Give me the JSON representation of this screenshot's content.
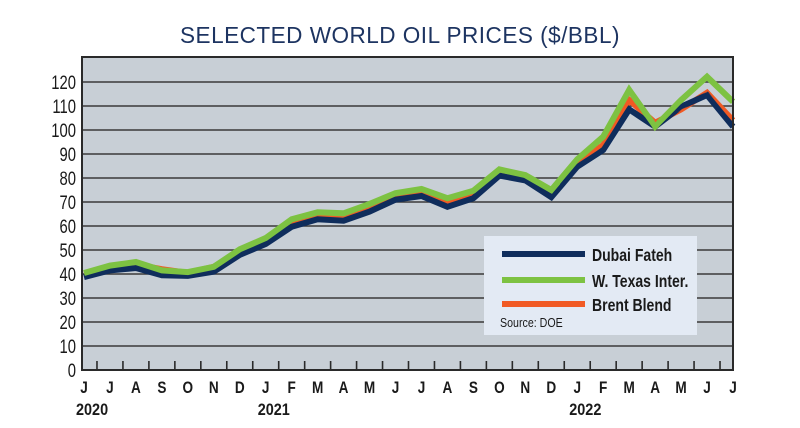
{
  "chart_data": {
    "type": "line",
    "title": "SELECTED WORLD OIL PRICES ($/BBL)",
    "xlabel": "",
    "ylabel": "",
    "ylim": [
      0,
      125
    ],
    "yticks": [
      0,
      10,
      20,
      30,
      40,
      50,
      60,
      70,
      80,
      90,
      100,
      110,
      120
    ],
    "grid": true,
    "x": [
      "J",
      "J",
      "A",
      "S",
      "O",
      "N",
      "D",
      "J",
      "F",
      "M",
      "A",
      "M",
      "J",
      "J",
      "A",
      "S",
      "O",
      "N",
      "D",
      "J",
      "F",
      "M",
      "A",
      "M",
      "J",
      "J"
    ],
    "year_labels": [
      {
        "label": "2020",
        "index": 0
      },
      {
        "label": "2021",
        "index": 7
      },
      {
        "label": "2022",
        "index": 19
      }
    ],
    "series": [
      {
        "name": "Brent Blend",
        "color": "#f15a24",
        "values": [
          40.3,
          42.5,
          44,
          42,
          40.5,
          43,
          49.5,
          54,
          61.5,
          64.5,
          64,
          68,
          72.5,
          74,
          70,
          73.5,
          82.5,
          80,
          74,
          86,
          93.7,
          112.5,
          103,
          108.6,
          115.5,
          104
        ]
      },
      {
        "name": "W. Texas Inter.",
        "color": "#7dc242",
        "values": [
          40.4,
          43.5,
          45,
          41.5,
          40.8,
          43,
          50.3,
          55,
          62.8,
          65.7,
          65.3,
          69.2,
          73.7,
          75.4,
          71.6,
          74.7,
          83.6,
          81.2,
          75,
          87.8,
          97.2,
          116.7,
          101.4,
          112.5,
          122.2,
          111.8
        ]
      },
      {
        "name": "Dubai Fateh",
        "color": "#0f2d5c",
        "values": [
          38.7,
          41.5,
          42.5,
          39.5,
          39.2,
          41,
          48,
          52.5,
          59.7,
          62.8,
          62.2,
          66,
          71,
          72.5,
          68,
          71.6,
          81,
          79,
          72,
          84.7,
          91.7,
          108.6,
          101.4,
          109.7,
          114.6,
          101.4
        ]
      }
    ],
    "legend": {
      "placement": "bottom-right",
      "entries": [
        {
          "label": "Dubai Fateh",
          "color": "#0f2d5c"
        },
        {
          "label": "W. Texas Inter.",
          "color": "#7dc242"
        },
        {
          "label": "Brent Blend",
          "color": "#f15a24"
        }
      ],
      "source": "Source: DOE"
    }
  },
  "colors": {
    "title": "#1d3461",
    "plot_background": "#c8cfd6",
    "gridline": "#3a3a3a",
    "legend_background": "#e3eaf4"
  }
}
